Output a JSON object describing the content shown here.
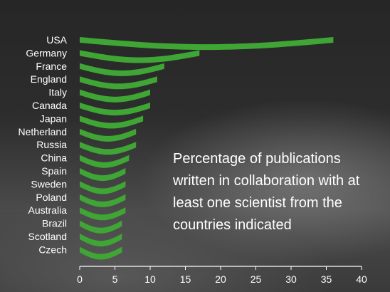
{
  "chart_data": {
    "type": "bar",
    "categories": [
      "USA",
      "Germany",
      "France",
      "England",
      "Italy",
      "Canada",
      "Japan",
      "Netherland",
      "Russia",
      "China",
      "Spain",
      "Sweden",
      "Poland",
      "Australia",
      "Brazil",
      "Scotland",
      "Czech"
    ],
    "values": [
      36,
      17,
      12,
      11,
      10,
      10,
      9,
      8,
      8,
      7,
      6.5,
      6.5,
      6.5,
      6.5,
      6,
      6,
      6
    ],
    "xlim": [
      0,
      40
    ],
    "xticks": [
      0,
      5,
      10,
      15,
      20,
      25,
      30,
      35,
      40
    ],
    "orientation": "horizontal",
    "bar_color": "#3fa535",
    "annotation": "Percentage of publications written in collaboration with at least one scientist from the countries indicated",
    "grid": false,
    "legend": "none"
  }
}
